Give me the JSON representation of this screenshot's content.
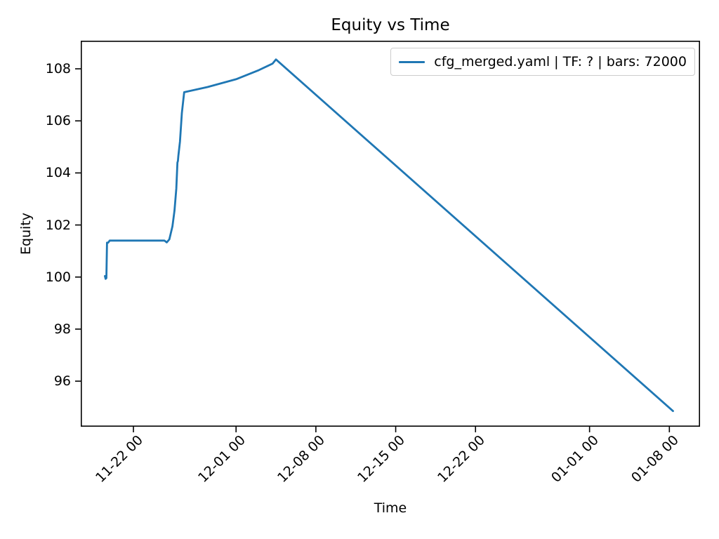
{
  "chart_data": {
    "type": "line",
    "title": "Equity vs Time",
    "xlabel": "Time",
    "ylabel": "Equity",
    "grid": false,
    "legend_position": "upper right",
    "series": [
      {
        "name": "cfg_merged.yaml | TF: ? | bars: 72000",
        "color": "#1f77b4",
        "points": [
          [
            0.5,
            100.04
          ],
          [
            0.56,
            99.93
          ],
          [
            0.63,
            99.96
          ],
          [
            0.68,
            101.32
          ],
          [
            0.78,
            101.32
          ],
          [
            0.92,
            101.4
          ],
          [
            5.72,
            101.4
          ],
          [
            5.92,
            101.33
          ],
          [
            6.15,
            101.45
          ],
          [
            6.42,
            101.95
          ],
          [
            6.6,
            102.55
          ],
          [
            6.76,
            103.4
          ],
          [
            6.86,
            104.4
          ],
          [
            6.9,
            104.46
          ],
          [
            6.94,
            104.65
          ],
          [
            7.08,
            105.2
          ],
          [
            7.25,
            106.3
          ],
          [
            7.45,
            107.1
          ],
          [
            9.5,
            107.3
          ],
          [
            12.0,
            107.6
          ],
          [
            14.0,
            107.95
          ],
          [
            15.2,
            108.2
          ],
          [
            15.5,
            108.36
          ],
          [
            50.32,
            94.85
          ]
        ]
      }
    ],
    "x_axis": {
      "label": "Time",
      "ticks": [
        {
          "pos": 3,
          "label": "11-22 00"
        },
        {
          "pos": 12,
          "label": "12-01 00"
        },
        {
          "pos": 19,
          "label": "12-08 00"
        },
        {
          "pos": 26,
          "label": "12-15 00"
        },
        {
          "pos": 33,
          "label": "12-22 00"
        },
        {
          "pos": 43,
          "label": "01-01 00"
        },
        {
          "pos": 50,
          "label": "01-08 00"
        }
      ],
      "lim": [
        -1.62,
        52.69
      ]
    },
    "y_axis": {
      "label": "Equity",
      "ticks": [
        96,
        98,
        100,
        102,
        104,
        106,
        108
      ],
      "lim": [
        94.25,
        109.08
      ]
    },
    "colors": {
      "line": "#1f77b4",
      "axis": "#000000",
      "legend_border": "#cccccc",
      "background": "#ffffff"
    }
  }
}
